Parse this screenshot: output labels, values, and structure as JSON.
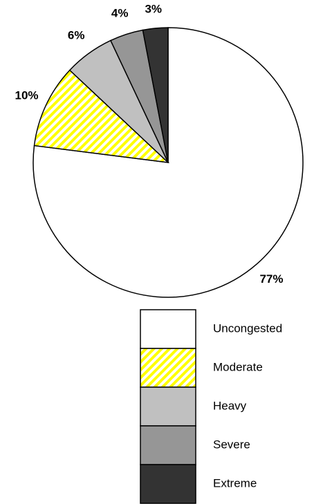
{
  "chart_data": {
    "type": "pie",
    "categories": [
      "Uncongested",
      "Moderate",
      "Heavy",
      "Severe",
      "Extreme"
    ],
    "values": [
      77,
      10,
      6,
      4,
      3
    ],
    "value_labels": [
      "77%",
      "10%",
      "6%",
      "4%",
      "3%"
    ],
    "colors": [
      "#ffffff",
      "#ffff00",
      "#c0c0c0",
      "#969696",
      "#333333"
    ],
    "patterns": [
      null,
      "hatch",
      null,
      null,
      null
    ]
  }
}
